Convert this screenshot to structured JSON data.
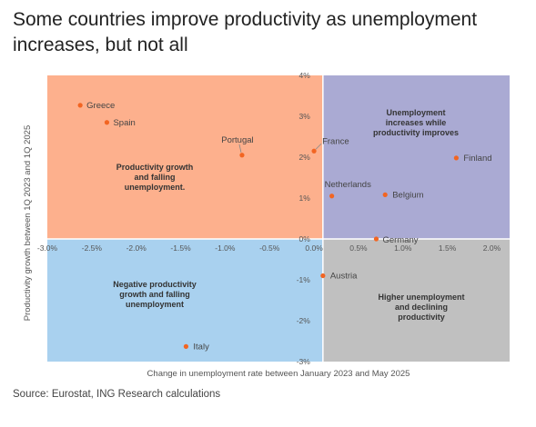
{
  "title": "Some countries improve productivity as unemployment increases, but not all",
  "source": "Source: Eurostat, ING Research calculations",
  "chart_data": {
    "type": "scatter",
    "xlabel": "Change in unemployment rate between January 2023 and May 2025",
    "ylabel": "Productivity growth between 1Q 2023 and 1Q 2025",
    "xlim": [
      -3.0,
      2.2
    ],
    "ylim": [
      -3.0,
      4.0
    ],
    "x_ticks": [
      "-3.0%",
      "-2.5%",
      "-2.0%",
      "-1.5%",
      "-1.0%",
      "-0.5%",
      "0.0%",
      "0.5%",
      "1.0%",
      "1.5%",
      "2.0%"
    ],
    "x_tick_values": [
      -3.0,
      -2.5,
      -2.0,
      -1.5,
      -1.0,
      -0.5,
      0.0,
      0.5,
      1.0,
      1.5,
      2.0
    ],
    "y_ticks": [
      "-3%",
      "-2%",
      "-1%",
      "0%",
      "1%",
      "2%",
      "3%",
      "4%"
    ],
    "y_tick_values": [
      -3,
      -2,
      -1,
      0,
      1,
      2,
      3,
      4
    ],
    "grid": false,
    "marker_color": "#f26522",
    "points": [
      {
        "label": "Greece",
        "x": -2.63,
        "y": 3.27
      },
      {
        "label": "Spain",
        "x": -2.33,
        "y": 2.85
      },
      {
        "label": "Portugal",
        "x": -0.81,
        "y": 2.05
      },
      {
        "label": "France",
        "x": 0.0,
        "y": 2.15
      },
      {
        "label": "Finland",
        "x": 1.6,
        "y": 1.98
      },
      {
        "label": "Netherlands",
        "x": 0.2,
        "y": 1.05
      },
      {
        "label": "Belgium",
        "x": 0.8,
        "y": 1.08
      },
      {
        "label": "Germany",
        "x": 0.7,
        "y": 0.0
      },
      {
        "label": "Austria",
        "x": 0.1,
        "y": -0.9
      },
      {
        "label": "Italy",
        "x": -1.44,
        "y": -2.63
      }
    ],
    "quadrants": [
      {
        "name": "top-left",
        "color": "#fdb08d",
        "lines": [
          "Productivity growth",
          "and falling",
          "unemployment."
        ]
      },
      {
        "name": "top-right",
        "color": "#aaaad3",
        "lines": [
          "Unemployment",
          "increases while",
          "productivity improves"
        ]
      },
      {
        "name": "bottom-left",
        "color": "#a9d1ef",
        "lines": [
          "Negative productivity",
          "growth and falling",
          "unemployment"
        ]
      },
      {
        "name": "bottom-right",
        "color": "#c0c0c0",
        "lines": [
          "Higher unemployment",
          "and declining",
          "productivity"
        ]
      }
    ]
  }
}
